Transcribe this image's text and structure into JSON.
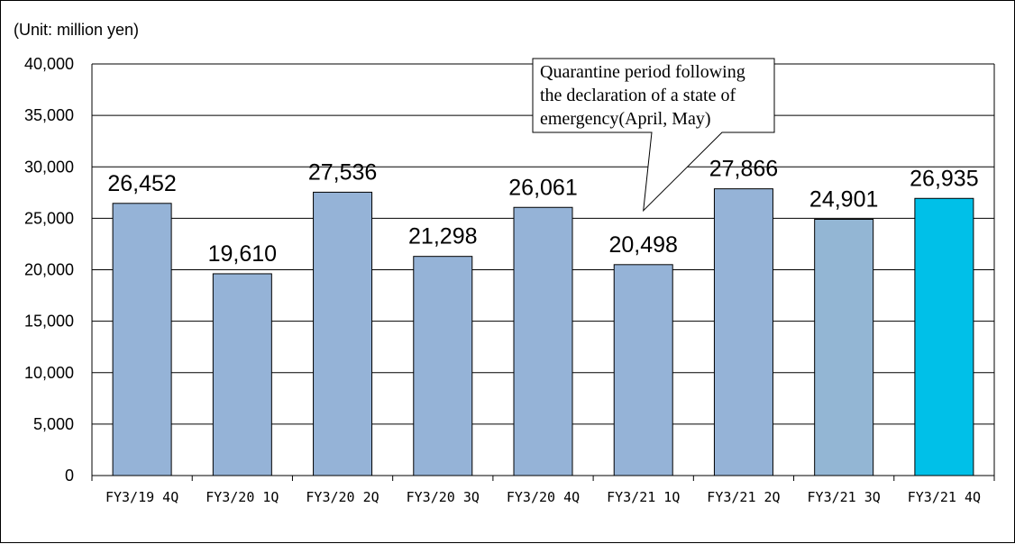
{
  "chart_data": {
    "type": "bar",
    "unit_label": "(Unit: million yen)",
    "title": "",
    "xlabel": "",
    "ylabel": "",
    "categories": [
      "FY3/19 4Q",
      "FY3/20 1Q",
      "FY3/20 2Q",
      "FY3/20 3Q",
      "FY3/20 4Q",
      "FY3/21 1Q",
      "FY3/21 2Q",
      "FY3/21 3Q",
      "FY3/21 4Q"
    ],
    "values": [
      26452,
      19610,
      27536,
      21298,
      26061,
      20498,
      27866,
      24901,
      26935
    ],
    "data_labels": [
      "26,452",
      "19,610",
      "27,536",
      "21,298",
      "26,061",
      "20,498",
      "27,866",
      "24,901",
      "26,935"
    ],
    "ylim": [
      0,
      40000
    ],
    "yticks": [
      0,
      5000,
      10000,
      15000,
      20000,
      25000,
      30000,
      35000,
      40000
    ],
    "ytick_labels": [
      "0",
      "5,000",
      "10,000",
      "15,000",
      "20,000",
      "25,000",
      "30,000",
      "35,000",
      "40,000"
    ],
    "grid": true,
    "colors": {
      "bar": "#95b3d7",
      "bar_q3": "#93b6d4",
      "bar_highlight": "#00c0e8",
      "grid": "#000000",
      "callout_fill": "#ffffff",
      "callout_border": "#000000"
    },
    "bar_colors": [
      "#95b3d7",
      "#95b3d7",
      "#95b3d7",
      "#95b3d7",
      "#95b3d7",
      "#95b3d7",
      "#95b3d7",
      "#93b6d4",
      "#00c0e8"
    ],
    "annotation": {
      "lines": [
        "Quarantine period following",
        "the declaration of a state of",
        "emergency(April, May)"
      ],
      "points_to": "FY3/21 1Q"
    }
  }
}
